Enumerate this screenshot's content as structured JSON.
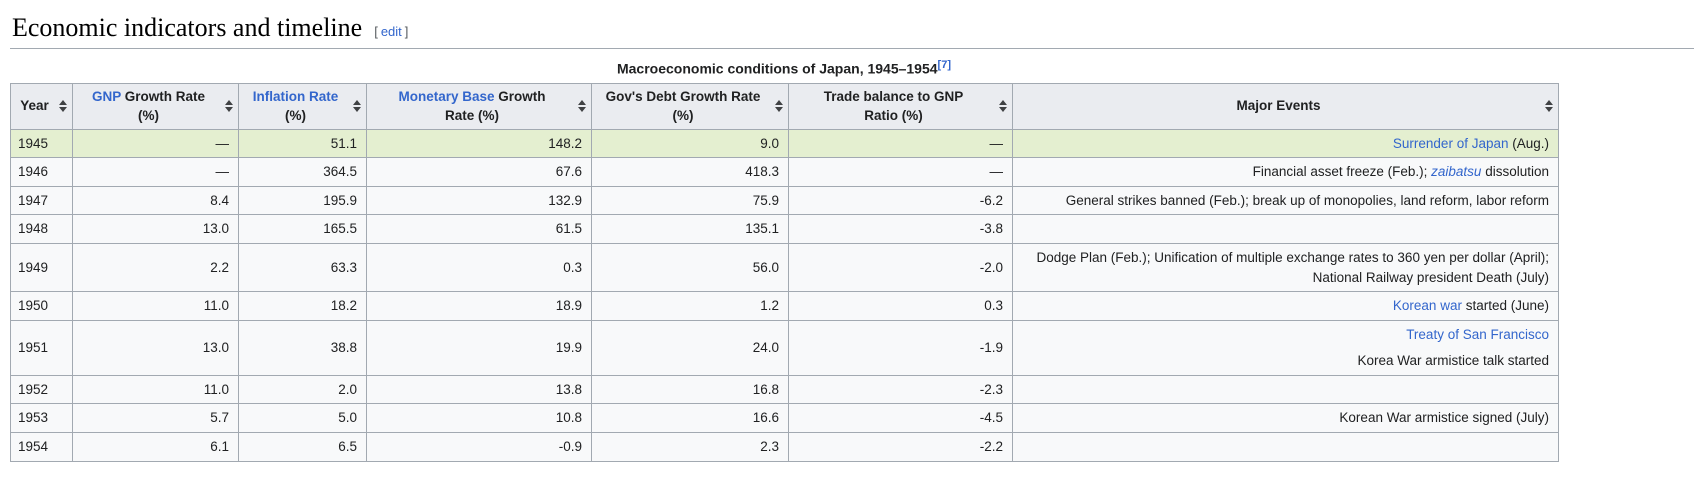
{
  "page": {
    "heading": "Economic indicators and timeline",
    "edit_bracket_open": "[",
    "edit_label": "edit",
    "edit_bracket_close": "]"
  },
  "colors": {
    "link_blue": "#3366cc",
    "header_bg": "#eaecf0",
    "body_bg": "#f8f9fa",
    "highlight_row_green": "#e4efd0",
    "border": "#a2a9b1"
  },
  "table": {
    "caption": "Macroeconomic conditions of Japan, 1945–1954",
    "caption_ref": "[7]",
    "columns": [
      {
        "key": "year",
        "segments": [
          {
            "t": "Year"
          }
        ]
      },
      {
        "key": "gnp",
        "segments": [
          {
            "t": "GNP",
            "link": true
          },
          {
            "t": " Growth Rate"
          },
          {
            "t": "(%)",
            "br": true
          }
        ]
      },
      {
        "key": "inflation",
        "segments": [
          {
            "t": "Inflation Rate",
            "link": true
          },
          {
            "t": "(%)",
            "br": true
          }
        ]
      },
      {
        "key": "monetary",
        "segments": [
          {
            "t": "Monetary Base",
            "link": true
          },
          {
            "t": " Growth"
          },
          {
            "t": "Rate (%)",
            "br": true
          }
        ]
      },
      {
        "key": "debt",
        "segments": [
          {
            "t": "Gov's Debt Growth Rate"
          },
          {
            "t": "(%)",
            "br": true
          }
        ]
      },
      {
        "key": "trade",
        "segments": [
          {
            "t": "Trade balance to GNP"
          },
          {
            "t": "Ratio (%)",
            "br": true
          }
        ]
      },
      {
        "key": "events",
        "segments": [
          {
            "t": "Major Events"
          }
        ]
      }
    ],
    "rows": [
      {
        "year": "1945",
        "highlight": true,
        "gnp": "—",
        "inflation": "51.1",
        "monetary": "148.2",
        "debt": "9.0",
        "trade": "—",
        "events": [
          {
            "t": "Surrender of Japan",
            "link": true
          },
          {
            "t": " (Aug.)"
          }
        ]
      },
      {
        "year": "1946",
        "gnp": "—",
        "inflation": "364.5",
        "monetary": "67.6",
        "debt": "418.3",
        "trade": "—",
        "events": [
          {
            "t": "Financial asset freeze (Feb.); "
          },
          {
            "t": "zaibatsu",
            "link": true,
            "italic": true
          },
          {
            "t": " dissolution"
          }
        ]
      },
      {
        "year": "1947",
        "gnp": "8.4",
        "inflation": "195.9",
        "monetary": "132.9",
        "debt": "75.9",
        "trade": "-6.2",
        "events": [
          {
            "t": "General strikes banned (Feb.); break up of monopolies, land reform, labor reform"
          }
        ]
      },
      {
        "year": "1948",
        "gnp": "13.0",
        "inflation": "165.5",
        "monetary": "61.5",
        "debt": "135.1",
        "trade": "-3.8",
        "events": []
      },
      {
        "year": "1949",
        "gnp": "2.2",
        "inflation": "63.3",
        "monetary": "0.3",
        "debt": "56.0",
        "trade": "-2.0",
        "events": [
          {
            "t": "Dodge Plan (Feb.); Unification of multiple exchange rates to 360 yen per dollar (April); National Railway president Death (July)"
          }
        ]
      },
      {
        "year": "1950",
        "gnp": "11.0",
        "inflation": "18.2",
        "monetary": "18.9",
        "debt": "1.2",
        "trade": "0.3",
        "events": [
          {
            "t": "Korean war",
            "link": true
          },
          {
            "t": " started (June)"
          }
        ]
      },
      {
        "year": "1951",
        "gnp": "13.0",
        "inflation": "38.8",
        "monetary": "19.9",
        "debt": "24.0",
        "trade": "-1.9",
        "events": [
          {
            "t": "Treaty of San Francisco",
            "link": true
          },
          {
            "t": "Korea War armistice talk started",
            "br": true
          }
        ]
      },
      {
        "year": "1952",
        "gnp": "11.0",
        "inflation": "2.0",
        "monetary": "13.8",
        "debt": "16.8",
        "trade": "-2.3",
        "events": []
      },
      {
        "year": "1953",
        "gnp": "5.7",
        "inflation": "5.0",
        "monetary": "10.8",
        "debt": "16.6",
        "trade": "-4.5",
        "events": [
          {
            "t": "Korean War armistice signed (July)"
          }
        ]
      },
      {
        "year": "1954",
        "gnp": "6.1",
        "inflation": "6.5",
        "monetary": "-0.9",
        "debt": "2.3",
        "trade": "-2.2",
        "events": []
      }
    ]
  }
}
